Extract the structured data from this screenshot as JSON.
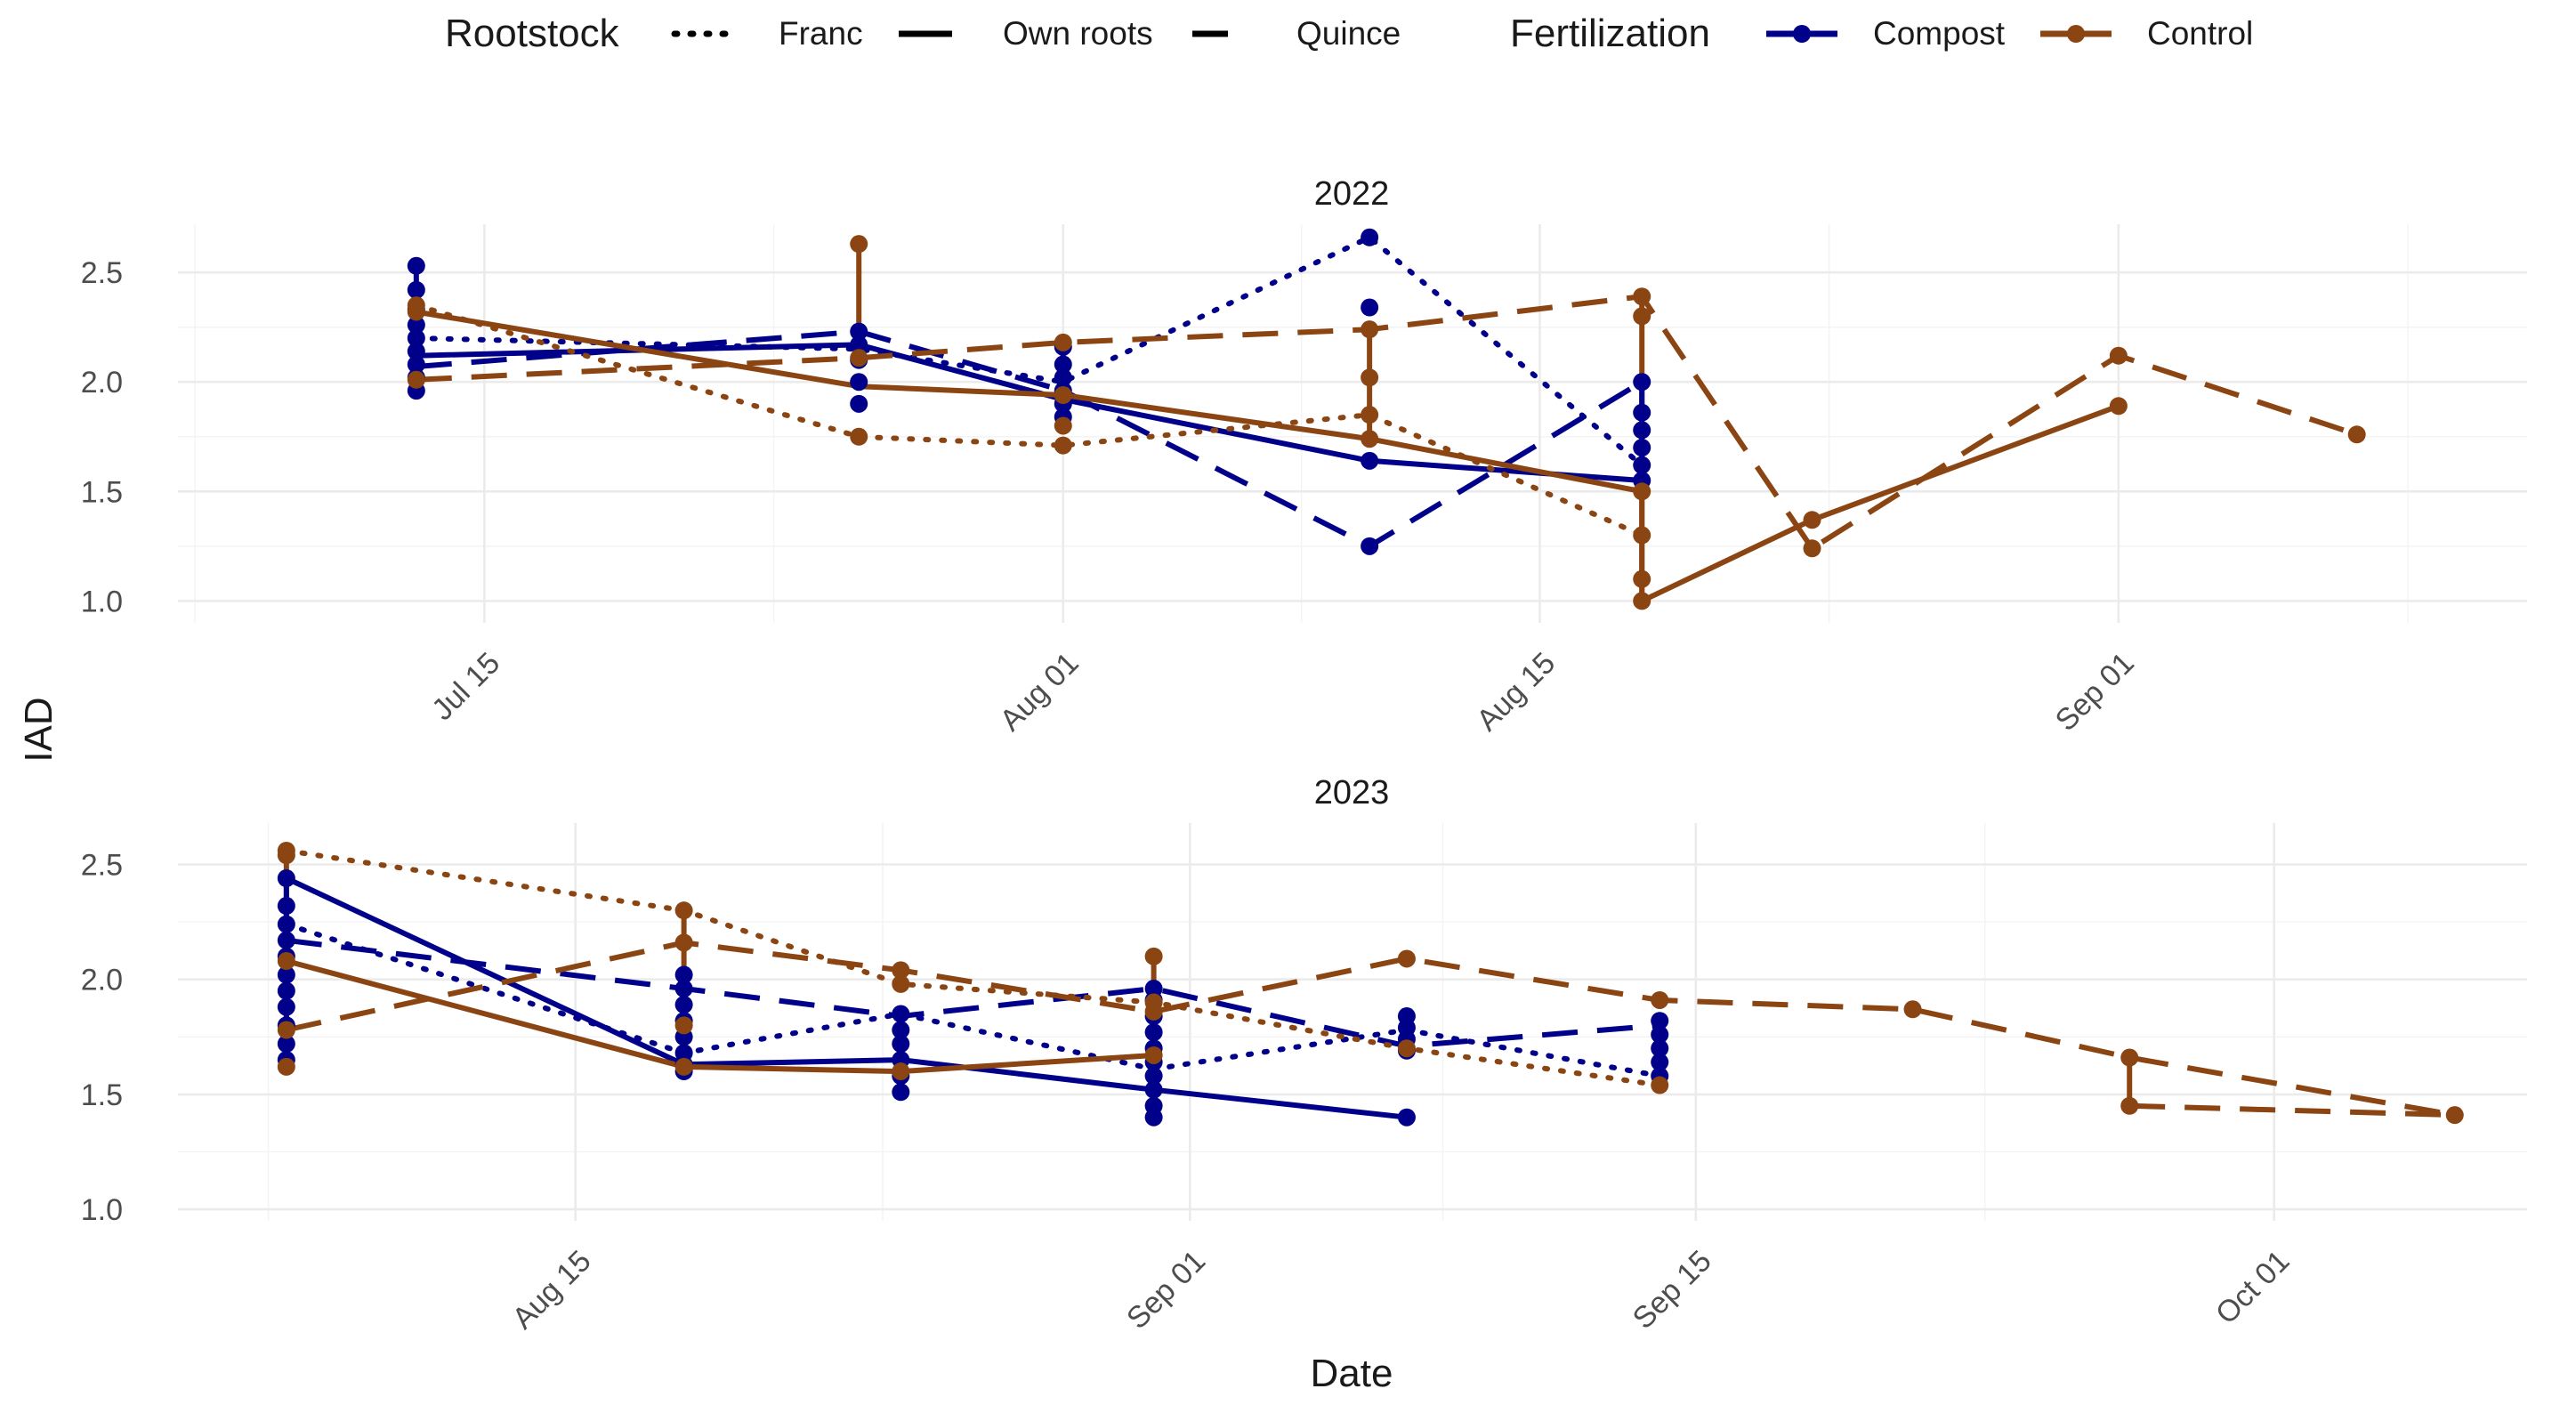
{
  "chart_data": {
    "type": "line",
    "xlabel": "Date",
    "ylabel": "IAD",
    "legend": {
      "position": "top",
      "linetype_title": "Rootstock",
      "linetype_items": [
        "Franc",
        "Own roots",
        "Quince"
      ],
      "color_title": "Fertilization",
      "color_items": [
        "Compost",
        "Control"
      ]
    },
    "colors": {
      "Compost": "#00008B",
      "Control": "#8B4513"
    },
    "panels": [
      {
        "title": "2022",
        "xlim": [
          "2022-07-06",
          "2022-09-13"
        ],
        "ylim": [
          0.9,
          2.72
        ],
        "x_ticks": [
          {
            "date": "2022-07-15",
            "label": "Jul 15"
          },
          {
            "date": "2022-08-01",
            "label": "Aug 01"
          },
          {
            "date": "2022-08-15",
            "label": "Aug 15"
          },
          {
            "date": "2022-09-01",
            "label": "Sep 01"
          }
        ],
        "y_ticks": [
          1.0,
          1.5,
          2.0,
          2.5
        ],
        "series": [
          {
            "fert": "Compost",
            "root": "Franc",
            "x": [
              "2022-07-13",
              "2022-07-26",
              "2022-08-01",
              "2022-08-10",
              "2022-08-18"
            ],
            "y": [
              2.2,
              2.15,
              2.0,
              2.66,
              1.62
            ]
          },
          {
            "fert": "Compost",
            "root": "Own roots",
            "x": [
              "2022-07-13",
              "2022-07-26",
              "2022-08-01",
              "2022-08-10",
              "2022-08-18"
            ],
            "y": [
              2.12,
              2.17,
              1.92,
              1.64,
              1.55
            ]
          },
          {
            "fert": "Compost",
            "root": "Quince",
            "x": [
              "2022-07-13",
              "2022-07-26",
              "2022-08-01",
              "2022-08-10",
              "2022-08-18"
            ],
            "y": [
              2.07,
              2.23,
              1.96,
              1.25,
              2.0
            ]
          },
          {
            "fert": "Control",
            "root": "Franc",
            "x": [
              "2022-07-13",
              "2022-07-26",
              "2022-08-01",
              "2022-08-10",
              "2022-08-18"
            ],
            "y": [
              2.35,
              1.75,
              1.71,
              1.85,
              1.3
            ]
          },
          {
            "fert": "Control",
            "root": "Own roots",
            "x": [
              "2022-07-13",
              "2022-07-26",
              "2022-08-01",
              "2022-08-10",
              "2022-08-18",
              "2022-08-18",
              "2022-08-23",
              "2022-09-01"
            ],
            "y": [
              2.32,
              1.98,
              1.94,
              1.74,
              1.5,
              1.0,
              1.37,
              1.89
            ]
          },
          {
            "fert": "Control",
            "root": "Quince",
            "x": [
              "2022-07-13",
              "2022-07-26",
              "2022-08-01",
              "2022-08-10",
              "2022-08-18",
              "2022-08-23",
              "2022-09-01",
              "2022-09-08"
            ],
            "y": [
              2.01,
              2.11,
              2.18,
              2.24,
              2.39,
              1.24,
              2.12,
              1.76
            ]
          }
        ],
        "points": [
          {
            "fert": "Compost",
            "x": "2022-07-13",
            "y": [
              1.96,
              2.02,
              2.08,
              2.14,
              2.2,
              2.26,
              2.33,
              2.42,
              2.53
            ]
          },
          {
            "fert": "Compost",
            "x": "2022-07-26",
            "y": [
              1.9,
              2.0,
              2.1,
              2.17,
              2.23
            ]
          },
          {
            "fert": "Compost",
            "x": "2022-08-01",
            "y": [
              1.84,
              1.9,
              1.96,
              2.02,
              2.08,
              2.16
            ]
          },
          {
            "fert": "Compost",
            "x": "2022-08-10",
            "y": [
              1.25,
              1.64,
              2.34,
              2.66
            ]
          },
          {
            "fert": "Compost",
            "x": "2022-08-18",
            "y": [
              1.55,
              1.62,
              1.7,
              1.78,
              1.86,
              2.0
            ]
          },
          {
            "fert": "Control",
            "x": "2022-07-13",
            "y": [
              2.01,
              2.32,
              2.35
            ]
          },
          {
            "fert": "Control",
            "x": "2022-07-26",
            "y": [
              1.75,
              2.11,
              2.63
            ]
          },
          {
            "fert": "Control",
            "x": "2022-08-01",
            "y": [
              1.71,
              1.8,
              1.94,
              2.18
            ]
          },
          {
            "fert": "Control",
            "x": "2022-08-10",
            "y": [
              1.74,
              1.85,
              2.02,
              2.24
            ]
          },
          {
            "fert": "Control",
            "x": "2022-08-18",
            "y": [
              1.0,
              1.1,
              1.3,
              1.5,
              2.3,
              2.39
            ]
          },
          {
            "fert": "Control",
            "x": "2022-08-23",
            "y": [
              1.24,
              1.37
            ]
          },
          {
            "fert": "Control",
            "x": "2022-09-01",
            "y": [
              1.89,
              2.12
            ]
          },
          {
            "fert": "Control",
            "x": "2022-09-08",
            "y": [
              1.76
            ]
          }
        ],
        "stems": [
          {
            "fert": "Control",
            "x": "2022-07-26",
            "y": [
              2.11,
              2.63
            ]
          },
          {
            "fert": "Control",
            "x": "2022-08-10",
            "y": [
              1.74,
              2.24
            ]
          },
          {
            "fert": "Control",
            "x": "2022-08-18",
            "y": [
              1.0,
              2.39
            ]
          },
          {
            "fert": "Compost",
            "x": "2022-07-13",
            "y": [
              1.96,
              2.53
            ]
          },
          {
            "fert": "Compost",
            "x": "2022-08-01",
            "y": [
              1.84,
              2.16
            ]
          },
          {
            "fert": "Compost",
            "x": "2022-08-18",
            "y": [
              1.55,
              2.0
            ]
          }
        ]
      },
      {
        "title": "2023",
        "xlim": [
          "2023-08-04",
          "2023-10-08"
        ],
        "ylim": [
          0.95,
          2.68
        ],
        "x_ticks": [
          {
            "date": "2023-08-15",
            "label": "Aug 15"
          },
          {
            "date": "2023-09-01",
            "label": "Sep 01"
          },
          {
            "date": "2023-09-15",
            "label": "Sep 15"
          },
          {
            "date": "2023-10-01",
            "label": "Oct 01"
          }
        ],
        "y_ticks": [
          1.0,
          1.5,
          2.0,
          2.5
        ],
        "series": [
          {
            "fert": "Compost",
            "root": "Franc",
            "x": [
              "2023-08-07",
              "2023-08-18",
              "2023-08-24",
              "2023-08-31",
              "2023-09-07",
              "2023-09-14"
            ],
            "y": [
              2.24,
              1.68,
              1.85,
              1.61,
              1.78,
              1.58
            ]
          },
          {
            "fert": "Compost",
            "root": "Own roots",
            "x": [
              "2023-08-07",
              "2023-08-18",
              "2023-08-24",
              "2023-08-31",
              "2023-09-07"
            ],
            "y": [
              2.44,
              1.63,
              1.65,
              1.52,
              1.4
            ]
          },
          {
            "fert": "Compost",
            "root": "Quince",
            "x": [
              "2023-08-07",
              "2023-08-18",
              "2023-08-24",
              "2023-08-31",
              "2023-09-07",
              "2023-09-14"
            ],
            "y": [
              2.17,
              1.96,
              1.84,
              1.96,
              1.71,
              1.8
            ]
          },
          {
            "fert": "Control",
            "root": "Franc",
            "x": [
              "2023-08-07",
              "2023-08-18",
              "2023-08-24",
              "2023-08-31",
              "2023-09-07",
              "2023-09-14"
            ],
            "y": [
              2.56,
              2.3,
              1.98,
              1.9,
              1.7,
              1.54
            ]
          },
          {
            "fert": "Control",
            "root": "Own roots",
            "x": [
              "2023-08-07",
              "2023-08-18",
              "2023-08-24",
              "2023-08-31"
            ],
            "y": [
              2.08,
              1.62,
              1.6,
              1.67
            ]
          },
          {
            "fert": "Control",
            "root": "Quince",
            "x": [
              "2023-08-07",
              "2023-08-18",
              "2023-08-24",
              "2023-08-31",
              "2023-09-07",
              "2023-09-14",
              "2023-09-21",
              "2023-09-27",
              "2023-10-06"
            ],
            "y": [
              1.78,
              2.16,
              2.04,
              1.86,
              2.09,
              1.91,
              1.87,
              1.66,
              1.41
            ]
          },
          {
            "fert": "Control",
            "root": "Quince",
            "x": [
              "2023-09-27",
              "2023-10-06"
            ],
            "y": [
              1.45,
              1.41
            ]
          }
        ],
        "points": [
          {
            "fert": "Compost",
            "x": "2023-08-07",
            "y": [
              1.65,
              1.72,
              1.8,
              1.88,
              1.95,
              2.02,
              2.1,
              2.17,
              2.24,
              2.32,
              2.44
            ]
          },
          {
            "fert": "Compost",
            "x": "2023-08-18",
            "y": [
              1.6,
              1.63,
              1.68,
              1.75,
              1.82,
              1.89,
              1.96,
              2.02
            ]
          },
          {
            "fert": "Compost",
            "x": "2023-08-24",
            "y": [
              1.51,
              1.58,
              1.65,
              1.72,
              1.78,
              1.85
            ]
          },
          {
            "fert": "Compost",
            "x": "2023-08-31",
            "y": [
              1.4,
              1.45,
              1.52,
              1.58,
              1.64,
              1.7,
              1.77,
              1.84,
              1.91,
              1.96
            ]
          },
          {
            "fert": "Compost",
            "x": "2023-09-07",
            "y": [
              1.4,
              1.69,
              1.74,
              1.79,
              1.84
            ]
          },
          {
            "fert": "Compost",
            "x": "2023-09-14",
            "y": [
              1.58,
              1.64,
              1.7,
              1.76,
              1.82
            ]
          },
          {
            "fert": "Control",
            "x": "2023-08-07",
            "y": [
              1.62,
              1.78,
              2.08,
              2.54,
              2.56
            ]
          },
          {
            "fert": "Control",
            "x": "2023-08-18",
            "y": [
              1.62,
              1.8,
              2.16,
              2.3
            ]
          },
          {
            "fert": "Control",
            "x": "2023-08-24",
            "y": [
              1.6,
              1.98,
              2.04
            ]
          },
          {
            "fert": "Control",
            "x": "2023-08-31",
            "y": [
              1.67,
              1.86,
              1.9,
              2.1
            ]
          },
          {
            "fert": "Control",
            "x": "2023-09-07",
            "y": [
              1.7,
              2.09
            ]
          },
          {
            "fert": "Control",
            "x": "2023-09-14",
            "y": [
              1.54,
              1.91
            ]
          },
          {
            "fert": "Control",
            "x": "2023-09-21",
            "y": [
              1.87
            ]
          },
          {
            "fert": "Control",
            "x": "2023-09-27",
            "y": [
              1.45,
              1.66
            ]
          },
          {
            "fert": "Control",
            "x": "2023-10-06",
            "y": [
              1.41
            ]
          }
        ],
        "stems": [
          {
            "fert": "Control",
            "x": "2023-08-07",
            "y": [
              1.62,
              2.56
            ]
          },
          {
            "fert": "Control",
            "x": "2023-08-18",
            "y": [
              1.62,
              2.3
            ]
          },
          {
            "fert": "Control",
            "x": "2023-08-31",
            "y": [
              1.67,
              2.1
            ]
          },
          {
            "fert": "Control",
            "x": "2023-09-27",
            "y": [
              1.45,
              1.66
            ]
          },
          {
            "fert": "Compost",
            "x": "2023-08-07",
            "y": [
              1.65,
              2.44
            ]
          },
          {
            "fert": "Compost",
            "x": "2023-08-18",
            "y": [
              1.6,
              2.02
            ]
          },
          {
            "fert": "Compost",
            "x": "2023-08-31",
            "y": [
              1.4,
              1.96
            ]
          },
          {
            "fert": "Compost",
            "x": "2023-09-14",
            "y": [
              1.58,
              1.82
            ]
          }
        ]
      }
    ]
  }
}
